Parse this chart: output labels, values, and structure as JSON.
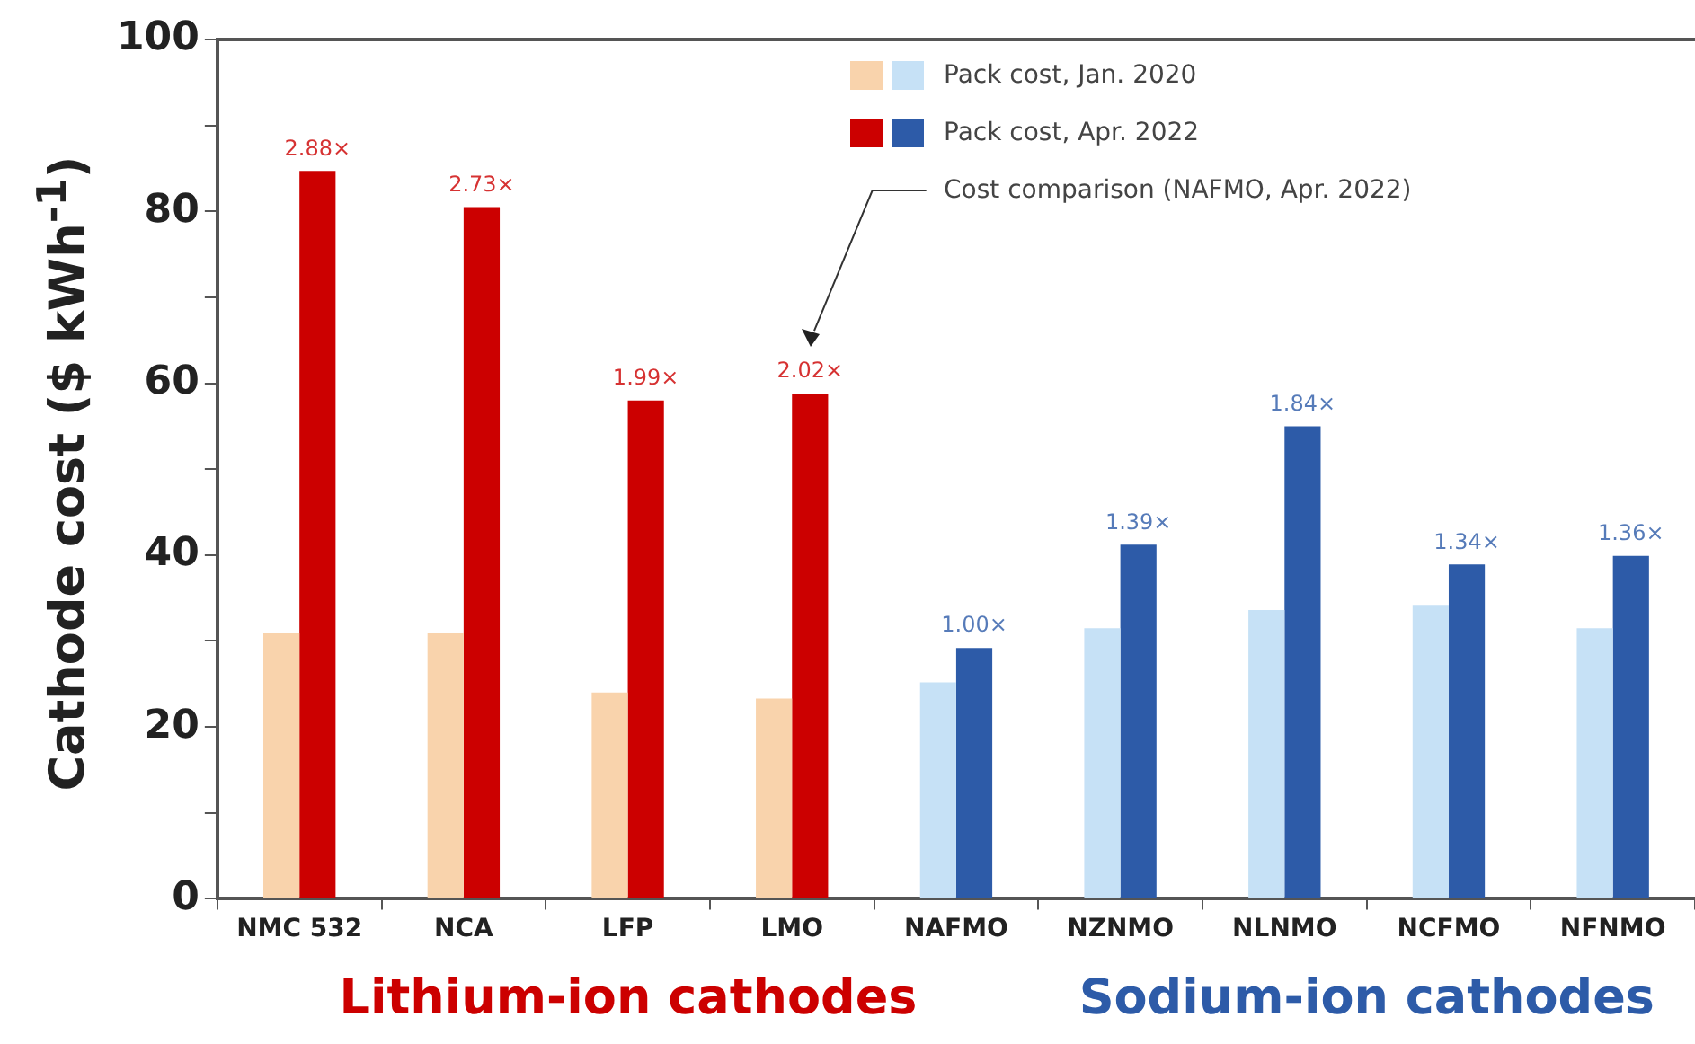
{
  "chart_data": {
    "type": "bar",
    "ylabel": "Cathode cost ($ kWh$^{-1}$)",
    "categories": [
      "NMC 532",
      "NCA",
      "LFP",
      "LMO",
      "NAFMO",
      "NZNMO",
      "NLNMO",
      "NCFMO",
      "NFNMO"
    ],
    "series": [
      {
        "name": "Pack cost, Jan. 2020",
        "colors": [
          "#f9d3ac",
          "#f9d3ac",
          "#f9d3ac",
          "#f9d3ac",
          "#c6e1f6",
          "#c6e1f6",
          "#c6e1f6",
          "#c6e1f6",
          "#c6e1f6"
        ],
        "values": [
          31,
          31,
          24,
          23.3,
          25.2,
          31.5,
          33.6,
          34.2,
          31.5
        ]
      },
      {
        "name": "Pack cost, Apr. 2022",
        "colors": [
          "#cc0000",
          "#cc0000",
          "#cc0000",
          "#cc0000",
          "#2d5ba8",
          "#2d5ba8",
          "#2d5ba8",
          "#2d5ba8",
          "#2d5ba8"
        ],
        "values": [
          84.7,
          80.5,
          58,
          58.8,
          29.2,
          41.2,
          55,
          38.9,
          39.9
        ]
      }
    ],
    "ylim": [
      0,
      100
    ],
    "yticks": [
      0,
      {
        "value": 10,
        "label": null
      },
      20,
      {
        "value": 30,
        "label": null
      },
      40,
      {
        "value": 50,
        "label": null
      },
      60,
      {
        "value": 70,
        "label": null
      },
      80,
      {
        "value": 90,
        "label": null
      },
      100
    ],
    "grid": false,
    "legend": "top right",
    "annotations": [
      "Cost comparison (NAFMO, Apr. 2022)",
      "Lithium-ion cathodes",
      "Sodium-ion cathodes",
      {
        "text": "2.88×",
        "x": "NMC 532",
        "y": 84.7
      },
      {
        "text": "2.73×",
        "x": "NCA",
        "y": 80.5
      },
      {
        "text": "1.99×",
        "x": "LFP",
        "y": 58
      },
      {
        "text": "2.02×",
        "x": "LMO",
        "y": 58.8
      },
      {
        "text": "1.00×",
        "x": "NAFMO",
        "y": 29.2
      },
      {
        "text": "1.39×",
        "x": "NZNMO",
        "y": 41.2
      },
      {
        "text": "1.84×",
        "x": "NLNMO",
        "y": 55
      },
      {
        "text": "1.34×",
        "x": "NCFMO",
        "y": 38.9
      },
      {
        "text": "1.36×",
        "x": "NFNMO",
        "y": 39.9
      }
    ]
  }
}
